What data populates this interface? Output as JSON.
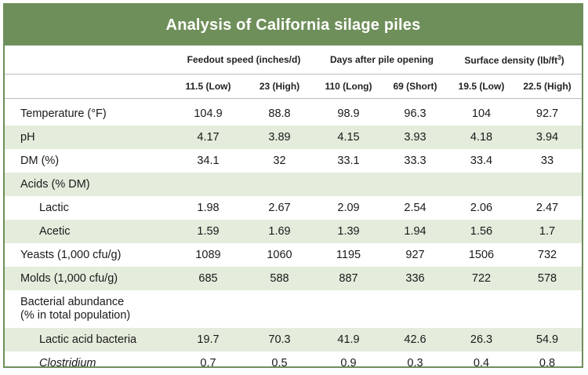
{
  "title": "Analysis of California silage piles",
  "groups": [
    {
      "label": "Feedout speed (inches/d)"
    },
    {
      "label": "Days after pile opening"
    },
    {
      "label": "Surface density (lb/ft",
      "sup": "3",
      "suffix": ")"
    }
  ],
  "columns": [
    "11.5 (Low)",
    "23 (High)",
    "110 (Long)",
    "69 (Short)",
    "19.5 (Low)",
    "22.5 (High)"
  ],
  "rows": [
    {
      "label": "Temperature (°F)",
      "values": [
        "104.9",
        "88.8",
        "98.9",
        "96.3",
        "104",
        "92.7"
      ]
    },
    {
      "label": "pH",
      "values": [
        "4.17",
        "3.89",
        "4.15",
        "3.93",
        "4.18",
        "3.94"
      ]
    },
    {
      "label": "DM (%)",
      "values": [
        "34.1",
        "32",
        "33.1",
        "33.3",
        "33.4",
        "33"
      ]
    },
    {
      "label": "Acids (% DM)",
      "values": [
        "",
        "",
        "",
        "",
        "",
        ""
      ]
    },
    {
      "label": "Lactic",
      "values": [
        "1.98",
        "2.67",
        "2.09",
        "2.54",
        "2.06",
        "2.47"
      ]
    },
    {
      "label": "Acetic",
      "values": [
        "1.59",
        "1.69",
        "1.39",
        "1.94",
        "1.56",
        "1.7"
      ]
    },
    {
      "label": "Yeasts (1,000 cfu/g)",
      "values": [
        "1089",
        "1060",
        "1195",
        "927",
        "1506",
        "732"
      ]
    },
    {
      "label": "Molds (1,000 cfu/g)",
      "values": [
        "685",
        "588",
        "887",
        "336",
        "722",
        "578"
      ]
    },
    {
      "label_line1": "Bacterial abundance",
      "label_line2": "(% in total population)",
      "values": [
        "",
        "",
        "",
        "",
        "",
        ""
      ]
    },
    {
      "label": "Lactic acid bacteria",
      "values": [
        "19.7",
        "70.3",
        "41.9",
        "42.6",
        "26.3",
        "54.9"
      ]
    },
    {
      "label": "Clostridium",
      "values": [
        "0.7",
        "0.5",
        "0.9",
        "0.3",
        "0.4",
        "0.8"
      ]
    }
  ]
}
